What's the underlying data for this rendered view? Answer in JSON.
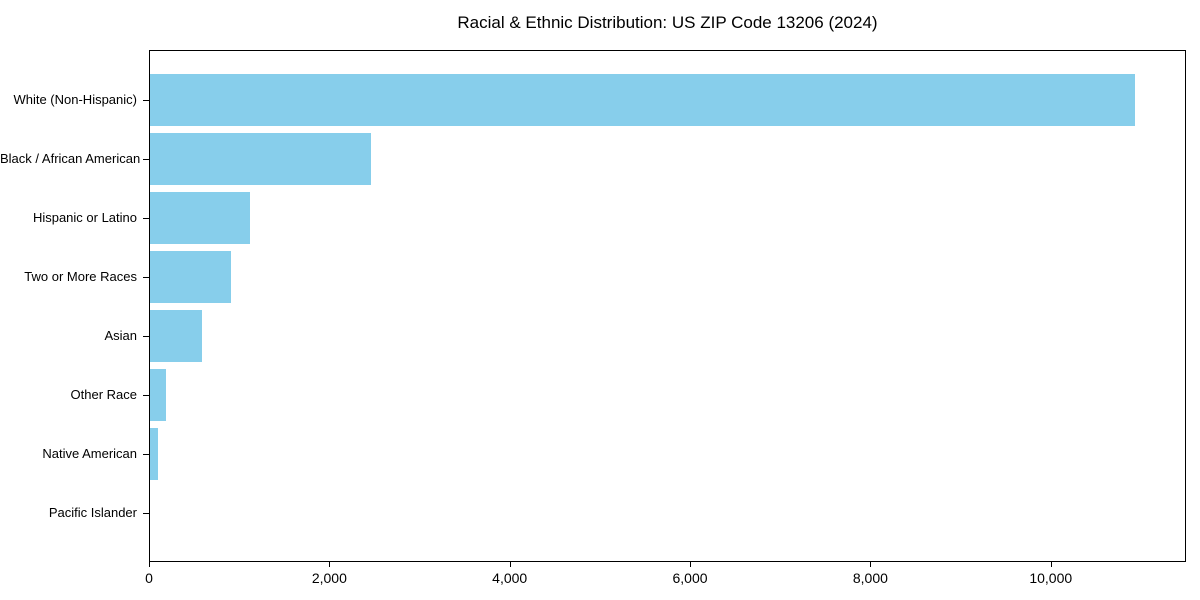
{
  "chart_data": {
    "type": "bar",
    "orientation": "horizontal",
    "title": "Racial & Ethnic Distribution: US ZIP Code 13206 (2024)",
    "categories": [
      "White (Non-Hispanic)",
      "Black / African American",
      "Hispanic or Latino",
      "Two or More Races",
      "Asian",
      "Other Race",
      "Native American",
      "Pacific Islander"
    ],
    "values": [
      10940,
      2460,
      1110,
      900,
      575,
      175,
      85,
      0
    ],
    "xlabel": "",
    "ylabel": "",
    "xlim": [
      0,
      11500
    ],
    "x_ticks": [
      0,
      2000,
      4000,
      6000,
      8000,
      10000
    ],
    "x_tick_labels": [
      "0",
      "2,000",
      "4,000",
      "6,000",
      "8,000",
      "10,000"
    ],
    "bar_color": "#87CEEB",
    "frame_color": "#000000",
    "grid": false,
    "legend": "none"
  }
}
